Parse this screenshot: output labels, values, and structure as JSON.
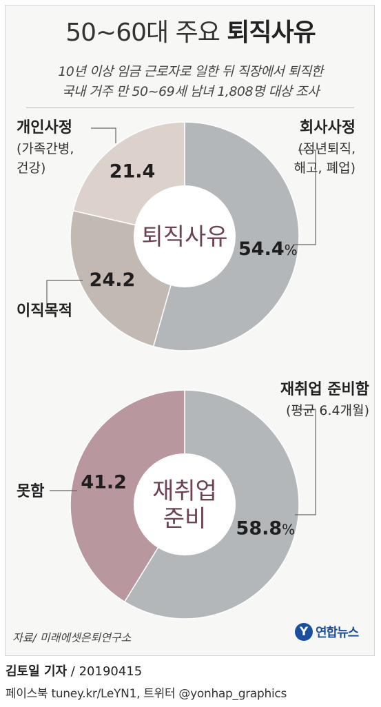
{
  "header": {
    "title_prefix": "50~60대 주요",
    "title_bold": "퇴직사유",
    "subtitle_line1": "10년 이상 임금 근로자로 일한 뒤 직장에서 퇴직한",
    "subtitle_line2": "국내 거주 만 50~69세 남녀 1,808명 대상 조사"
  },
  "chart_data": [
    {
      "type": "pie",
      "title": "퇴직사유",
      "slices": [
        {
          "label": "회사사정",
          "note": "(정년퇴직,|해고, 폐업)",
          "value": 54.4,
          "display": "54.4",
          "unit": "%",
          "color": "#b3b7ba"
        },
        {
          "label": "이직목적",
          "note": "",
          "value": 24.2,
          "display": "24.2",
          "unit": "",
          "color": "#c3b9b3"
        },
        {
          "label": "개인사정",
          "note": "(가족간병,|건강)",
          "value": 21.4,
          "display": "21.4",
          "unit": "",
          "color": "#dcd2cb"
        }
      ]
    },
    {
      "type": "pie",
      "title": "재취업|준비",
      "slices": [
        {
          "label": "재취업 준비함",
          "note": "(평균 6.4개월)",
          "value": 58.8,
          "display": "58.8",
          "unit": "%",
          "color": "#b3b7ba"
        },
        {
          "label": "못함",
          "note": "",
          "value": 41.2,
          "display": "41.2",
          "unit": "",
          "color": "#b8979e"
        }
      ]
    }
  ],
  "colors": {
    "center_text": "#6e4256",
    "hole": "#ffffff"
  },
  "footer": {
    "source": "자료/ 미래에셋은퇴연구소",
    "logo_mark": "Y",
    "logo_text": "연합뉴스",
    "byline_name": "김토일 기자",
    "byline_date": " / 20190415",
    "social": "페이스북 tuney.kr/LeYN1, 트위터 @yonhap_graphics"
  }
}
